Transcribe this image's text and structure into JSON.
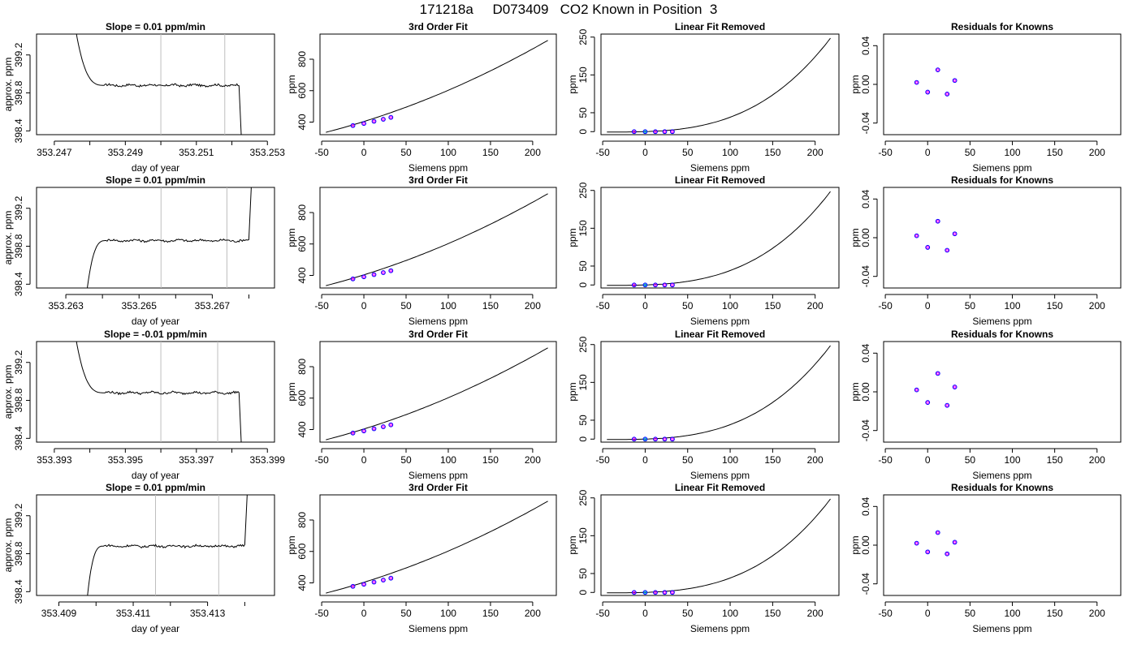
{
  "title": "171218a     D073409   CO2 Known in Position  3",
  "colors": {
    "trace": "#000000",
    "vline": "#bebebe",
    "point_outer": "#0000ff",
    "point_inner": "#ff00ff",
    "point_ref": "#00bfff"
  },
  "panel_titles": {
    "fit": "3rd Order Fit",
    "linear_removed": "Linear Fit Removed",
    "residuals": "Residuals for Knowns"
  },
  "axis_labels": {
    "time_x": "day of year",
    "time_y": "approx. ppm",
    "siemens_x": "Siemens ppm",
    "ppm_y": "ppm"
  },
  "chart_data": [
    {
      "type": "line",
      "row": 1,
      "title": "Slope =  0.01  ppm/min",
      "xlabel": "day of year",
      "ylabel": "approx. ppm",
      "xlim": [
        353.2465,
        353.2532
      ],
      "ylim": [
        398.36,
        399.42
      ],
      "x_ticks": [
        "353.247",
        "353.249",
        "353.251",
        "353.253"
      ],
      "x_minor_ticks": [
        353.248,
        353.25,
        353.252
      ],
      "y_ticks": [
        "398.4",
        "398.8",
        "399.2"
      ],
      "vlines": [
        353.25,
        353.2518
      ],
      "plateau": 398.88,
      "trace": {
        "start": 353.2475,
        "plateau_start": 353.2484,
        "plateau_end": 353.2522,
        "end": 353.2523,
        "start_kind": "fall",
        "end_kind": "drop"
      }
    },
    {
      "type": "line",
      "row": 2,
      "title": "Slope =  0.01  ppm/min",
      "xlabel": "day of year",
      "ylabel": "approx. ppm",
      "xlim": [
        353.2622,
        353.2687
      ],
      "ylim": [
        398.36,
        399.42
      ],
      "x_ticks": [
        "353.263",
        "353.265",
        "353.267"
      ],
      "x_minor_ticks": [
        353.264,
        353.266,
        353.268
      ],
      "y_ticks": [
        "398.4",
        "398.8",
        "399.2"
      ],
      "vlines": [
        353.2656,
        353.2674
      ],
      "plateau": 398.86,
      "trace": {
        "start": 353.2635,
        "plateau_start": 353.2641,
        "plateau_end": 353.268,
        "end": 353.2681,
        "start_kind": "rise",
        "end_kind": "spike"
      }
    },
    {
      "type": "line",
      "row": 3,
      "title": "Slope =  -0.01  ppm/min",
      "xlabel": "day of year",
      "ylabel": "approx. ppm",
      "xlim": [
        353.3925,
        353.3992
      ],
      "ylim": [
        398.36,
        399.42
      ],
      "x_ticks": [
        "353.393",
        "353.395",
        "353.397",
        "353.399"
      ],
      "x_minor_ticks": [
        353.394,
        353.396,
        353.398
      ],
      "y_ticks": [
        "398.4",
        "398.8",
        "399.2"
      ],
      "vlines": [
        353.396,
        353.3976
      ],
      "plateau": 398.88,
      "trace": {
        "start": 353.3935,
        "plateau_start": 353.3944,
        "plateau_end": 353.3982,
        "end": 353.3983,
        "start_kind": "fall",
        "end_kind": "drop"
      }
    },
    {
      "type": "line",
      "row": 4,
      "title": "Slope =  0.01  ppm/min",
      "xlabel": "day of year",
      "ylabel": "approx. ppm",
      "xlim": [
        353.4084,
        353.4148
      ],
      "ylim": [
        398.36,
        399.42
      ],
      "x_ticks": [
        "353.409",
        "353.411",
        "353.413"
      ],
      "x_minor_ticks": [
        353.41,
        353.412,
        353.414
      ],
      "y_ticks": [
        "398.4",
        "398.8",
        "399.2"
      ],
      "vlines": [
        353.4116,
        353.4133
      ],
      "plateau": 398.88,
      "trace": {
        "start": 353.4097,
        "plateau_start": 353.4102,
        "plateau_end": 353.414,
        "end": 353.4141,
        "start_kind": "rise",
        "end_kind": "spike"
      }
    },
    {
      "type": "scatter",
      "title": "3rd Order Fit",
      "xlabel": "Siemens ppm",
      "ylabel": "ppm",
      "xlim": [
        -52,
        228
      ],
      "ylim": [
        320,
        960
      ],
      "x_ticks": [
        -50,
        0,
        50,
        100,
        150,
        200
      ],
      "y_ticks": [
        400,
        600,
        800
      ],
      "points": [
        {
          "x": -13,
          "y": 378
        },
        {
          "x": 0,
          "y": 391
        },
        {
          "x": 12,
          "y": 405
        },
        {
          "x": 23,
          "y": 418
        },
        {
          "x": 32,
          "y": 430
        }
      ],
      "curve_range": [
        -45,
        218
      ],
      "curve_endpoints": {
        "start": 335,
        "end": 920
      }
    },
    {
      "type": "scatter",
      "title": "Linear Fit Removed",
      "xlabel": "Siemens ppm",
      "ylabel": "ppm",
      "xlim": [
        -52,
        228
      ],
      "ylim": [
        -8,
        258
      ],
      "x_ticks": [
        -50,
        0,
        50,
        100,
        150,
        200
      ],
      "y_ticks": [
        0,
        50,
        150,
        250
      ],
      "points": [
        {
          "x": -13,
          "y": 0
        },
        {
          "x": 0,
          "y": 0
        },
        {
          "x": 12,
          "y": 0
        },
        {
          "x": 23,
          "y": 0
        },
        {
          "x": 32,
          "y": 0
        }
      ],
      "curve_range": [
        -45,
        218
      ],
      "curve_endpoints": {
        "start": -1,
        "end": 247
      }
    },
    {
      "type": "scatter",
      "title": "Residuals for Knowns",
      "xlabel": "Siemens ppm",
      "ylabel": "ppm",
      "xlim": [
        -52,
        228
      ],
      "ylim": [
        -0.052,
        0.052
      ],
      "x_ticks": [
        -50,
        0,
        50,
        100,
        150,
        200
      ],
      "y_ticks": [
        "-0.04",
        "0.00",
        "0.04"
      ],
      "rows": [
        [
          {
            "x": -13,
            "y": 0.002
          },
          {
            "x": 0,
            "y": -0.008
          },
          {
            "x": 12,
            "y": 0.015
          },
          {
            "x": 23,
            "y": -0.01
          },
          {
            "x": 32,
            "y": 0.004
          }
        ],
        [
          {
            "x": -13,
            "y": 0.002
          },
          {
            "x": 0,
            "y": -0.01
          },
          {
            "x": 12,
            "y": 0.017
          },
          {
            "x": 23,
            "y": -0.013
          },
          {
            "x": 32,
            "y": 0.004
          }
        ],
        [
          {
            "x": -13,
            "y": 0.002
          },
          {
            "x": 0,
            "y": -0.011
          },
          {
            "x": 12,
            "y": 0.019
          },
          {
            "x": 23,
            "y": -0.014
          },
          {
            "x": 32,
            "y": 0.005
          }
        ],
        [
          {
            "x": -13,
            "y": 0.002
          },
          {
            "x": 0,
            "y": -0.007
          },
          {
            "x": 12,
            "y": 0.013
          },
          {
            "x": 23,
            "y": -0.009
          },
          {
            "x": 32,
            "y": 0.003
          }
        ]
      ]
    }
  ]
}
